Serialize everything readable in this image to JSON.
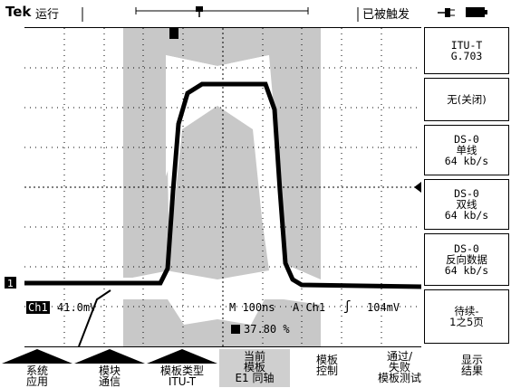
{
  "status": {
    "brand": "Tek",
    "run_state": "运行",
    "trigger_state": "已被触发"
  },
  "screen": {
    "channel_label": "Ch1",
    "ch1_scale": "41.0mV",
    "timebase": "M 100ns",
    "trigger_info": "A  Ch1",
    "trigger_level": "104mV",
    "percent": "37.80 %"
  },
  "side_menu": {
    "standard_line1": "ITU-T",
    "standard_line2": "G.703",
    "items": [
      {
        "line1": "无(关闭)"
      },
      {
        "line1": "DS-0",
        "line2": "单线",
        "line3": "64 kb/s"
      },
      {
        "line1": "DS-0",
        "line2": "双线",
        "line3": "64 kb/s"
      },
      {
        "line1": "DS-0",
        "line2": "反向数据",
        "line3": "64 kb/s"
      },
      {
        "line1": "待续-",
        "line2": "1之5页"
      }
    ]
  },
  "bottom_menu": [
    {
      "line1": "系统",
      "line2": "应用"
    },
    {
      "line1": "模块",
      "line2": "通信"
    },
    {
      "line1": "模板类型",
      "line2": "ITU-T"
    },
    {
      "line1": "当前",
      "line2": "模板",
      "line3": "E1 同轴"
    },
    {
      "line1": "模板",
      "line2": "控制"
    },
    {
      "line1": "通过/",
      "line2": "失败",
      "line3": "模板测试"
    },
    {
      "line1": "显示",
      "line2": "结果"
    }
  ],
  "colors": {
    "mask": "#c8c8c8",
    "trace": "#000000",
    "background": "#ffffff"
  }
}
